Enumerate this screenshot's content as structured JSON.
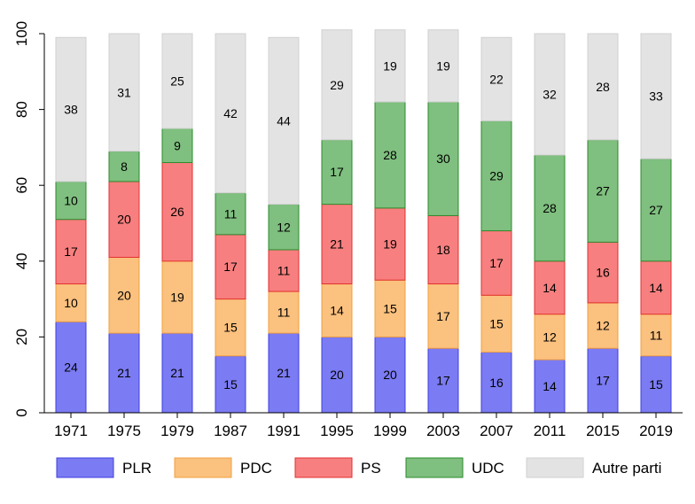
{
  "chart_data": {
    "type": "bar",
    "stacked": true,
    "categories": [
      "1971",
      "1975",
      "1979",
      "1987",
      "1991",
      "1995",
      "1999",
      "2003",
      "2007",
      "2011",
      "2015",
      "2019"
    ],
    "series": [
      {
        "name": "PLR",
        "color": "#7b7bf3",
        "edge": "#3f3fe0",
        "values": [
          24,
          21,
          21,
          15,
          21,
          20,
          20,
          17,
          16,
          14,
          17,
          15
        ]
      },
      {
        "name": "PDC",
        "color": "#fbc17e",
        "edge": "#f2a040",
        "values": [
          10,
          20,
          19,
          15,
          11,
          14,
          15,
          17,
          15,
          12,
          12,
          11
        ]
      },
      {
        "name": "PS",
        "color": "#f87f7f",
        "edge": "#e03030",
        "values": [
          17,
          20,
          26,
          17,
          11,
          21,
          19,
          18,
          17,
          14,
          16,
          14
        ]
      },
      {
        "name": "UDC",
        "color": "#7fbf7f",
        "edge": "#2e8b2e",
        "values": [
          10,
          8,
          9,
          11,
          12,
          17,
          28,
          30,
          29,
          28,
          27,
          27
        ]
      },
      {
        "name": "Autre parti",
        "color": "#e3e3e3",
        "edge": "#d0d0d0",
        "values": [
          38,
          31,
          25,
          42,
          44,
          29,
          19,
          19,
          22,
          32,
          28,
          33
        ]
      }
    ],
    "ylim": [
      0,
      100
    ],
    "yticks": [
      0,
      20,
      40,
      60,
      80,
      100
    ],
    "legend_position": "bottom",
    "grid": false
  }
}
